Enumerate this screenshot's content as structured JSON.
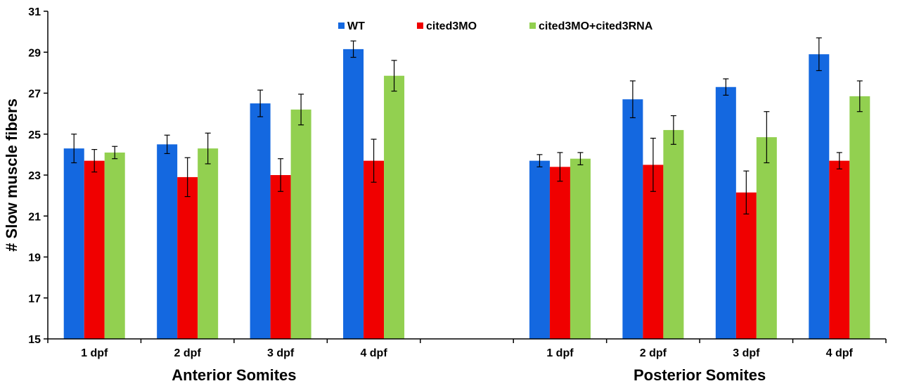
{
  "chart_data": {
    "type": "bar",
    "ylabel": "# Slow muscle fibers",
    "ylim": [
      15,
      31
    ],
    "yticks": [
      15,
      17,
      19,
      21,
      23,
      25,
      27,
      29,
      31
    ],
    "grid": false,
    "legend_position": "top",
    "categories": [
      "1 dpf",
      "2 dpf",
      "3 dpf",
      "4 dpf",
      "1 dpf",
      "2 dpf",
      "3 dpf",
      "4 dpf"
    ],
    "groups": [
      {
        "label": "Anterior Somites",
        "categories": [
          "1 dpf",
          "2 dpf",
          "3 dpf",
          "4 dpf"
        ]
      },
      {
        "label": "Posterior Somites",
        "categories": [
          "1 dpf",
          "2 dpf",
          "3 dpf",
          "4 dpf"
        ]
      }
    ],
    "series": [
      {
        "name": "WT",
        "color": "#1468e0",
        "values": [
          24.3,
          24.5,
          26.5,
          29.15,
          23.7,
          26.7,
          27.3,
          28.9
        ],
        "errors": [
          0.7,
          0.45,
          0.65,
          0.4,
          0.3,
          0.9,
          0.4,
          0.8
        ]
      },
      {
        "name": "cited3MO",
        "color": "#f00000",
        "values": [
          23.7,
          22.9,
          23.0,
          23.7,
          23.4,
          23.5,
          22.15,
          23.7
        ],
        "errors": [
          0.55,
          0.95,
          0.8,
          1.05,
          0.7,
          1.3,
          1.05,
          0.4
        ]
      },
      {
        "name": "cited3MO+cited3RNA",
        "color": "#92d050",
        "values": [
          24.1,
          24.3,
          26.2,
          27.85,
          23.8,
          25.2,
          24.85,
          26.85
        ],
        "errors": [
          0.3,
          0.75,
          0.75,
          0.75,
          0.3,
          0.7,
          1.25,
          0.75
        ]
      }
    ]
  }
}
